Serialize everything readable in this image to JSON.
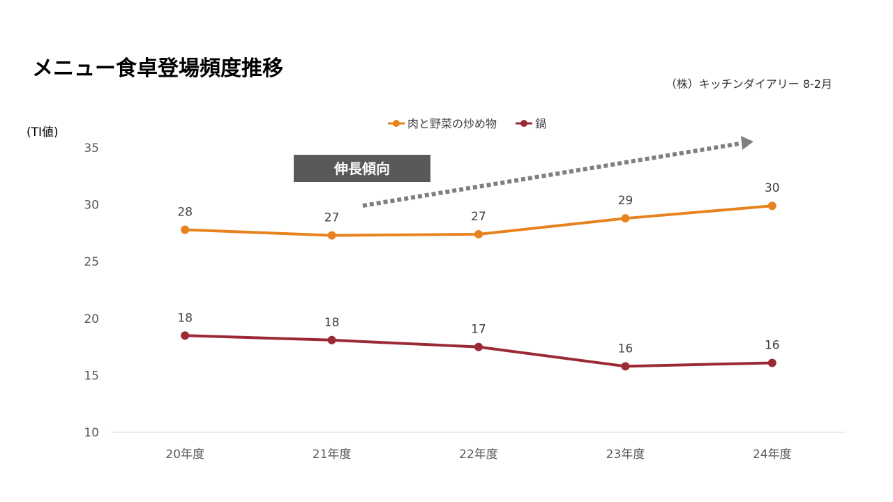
{
  "slide": {
    "title": "メニュー食卓登場頻度推移",
    "source": "（株）キッチンダイアリー 8-2月",
    "unit_label": "(TI値)"
  },
  "callout": {
    "text": "伸長傾向",
    "box_color": "#595959",
    "arrow_color": "#7f7f7f"
  },
  "chart_data": {
    "type": "line",
    "categories": [
      "20年度",
      "21年度",
      "22年度",
      "23年度",
      "24年度"
    ],
    "series": [
      {
        "name": "肉と野菜の炒め物",
        "color": "#e8821e",
        "values": [
          27.8,
          27.3,
          27.4,
          28.8,
          29.9
        ],
        "labels": [
          "28",
          "27",
          "27",
          "29",
          "30"
        ]
      },
      {
        "name": "鍋",
        "color": "#9b2a35",
        "values": [
          18.5,
          18.1,
          17.5,
          15.8,
          16.1
        ],
        "labels": [
          "18",
          "18",
          "17",
          "16",
          "16"
        ]
      }
    ],
    "ylim": [
      10,
      35
    ],
    "yticks": [
      "10",
      "15",
      "20",
      "25",
      "30",
      "35"
    ],
    "grid": false,
    "legend": "top-center"
  }
}
